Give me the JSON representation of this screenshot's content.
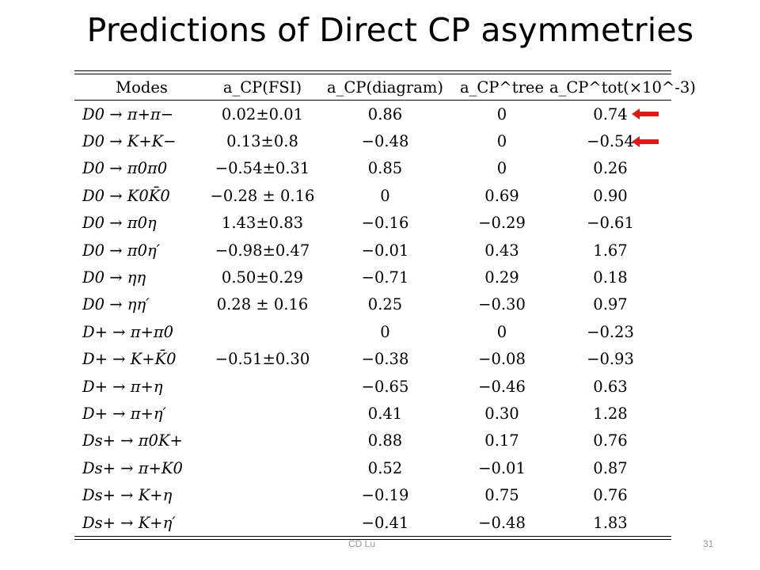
{
  "slide": {
    "title": "Predictions of Direct CP asymmetries",
    "footer_author": "CD Lu",
    "page_number": "31"
  },
  "table": {
    "headers": [
      "Modes",
      "a_CP(FSI)",
      "a_CP(diagram)",
      "a_CP^tree",
      "a_CP^tot(×10^-3)"
    ],
    "rows": [
      {
        "mode": "D0 → π+π−",
        "fsi": "0.02±0.01",
        "diagram": "0.86",
        "tree": "0",
        "tot": "0.74",
        "highlight": true
      },
      {
        "mode": "D0 → K+K−",
        "fsi": "0.13±0.8",
        "diagram": "−0.48",
        "tree": "0",
        "tot": "−0.54",
        "highlight": true
      },
      {
        "mode": "D0 → π0π0",
        "fsi": "−0.54±0.31",
        "diagram": "0.85",
        "tree": "0",
        "tot": "0.26"
      },
      {
        "mode": "D0 → K0K̄0",
        "fsi": "−0.28 ± 0.16",
        "diagram": "0",
        "tree": "0.69",
        "tot": "0.90"
      },
      {
        "mode": "D0 → π0η",
        "fsi": "1.43±0.83",
        "diagram": "−0.16",
        "tree": "−0.29",
        "tot": "−0.61"
      },
      {
        "mode": "D0 → π0η′",
        "fsi": "−0.98±0.47",
        "diagram": "−0.01",
        "tree": "0.43",
        "tot": "1.67"
      },
      {
        "mode": "D0 → ηη",
        "fsi": "0.50±0.29",
        "diagram": "−0.71",
        "tree": "0.29",
        "tot": "0.18"
      },
      {
        "mode": "D0 → ηη′",
        "fsi": "0.28 ± 0.16",
        "diagram": "0.25",
        "tree": "−0.30",
        "tot": "0.97"
      },
      {
        "mode": "D+ → π+π0",
        "fsi": "",
        "diagram": "0",
        "tree": "0",
        "tot": "−0.23"
      },
      {
        "mode": "D+ → K+K̄0",
        "fsi": "−0.51±0.30",
        "diagram": "−0.38",
        "tree": "−0.08",
        "tot": "−0.93"
      },
      {
        "mode": "D+ → π+η",
        "fsi": "",
        "diagram": "−0.65",
        "tree": "−0.46",
        "tot": "0.63"
      },
      {
        "mode": "D+ → π+η′",
        "fsi": "",
        "diagram": "0.41",
        "tree": "0.30",
        "tot": "1.28"
      },
      {
        "mode": "Ds+ → π0K+",
        "fsi": "",
        "diagram": "0.88",
        "tree": "0.17",
        "tot": "0.76"
      },
      {
        "mode": "Ds+ → π+K0",
        "fsi": "",
        "diagram": "0.52",
        "tree": "−0.01",
        "tot": "0.87"
      },
      {
        "mode": "Ds+ → K+η",
        "fsi": "",
        "diagram": "−0.19",
        "tree": "0.75",
        "tot": "0.76"
      },
      {
        "mode": "Ds+ → K+η′",
        "fsi": "",
        "diagram": "−0.41",
        "tree": "−0.48",
        "tot": "1.83"
      }
    ]
  },
  "colors": {
    "arrow": "#e01818"
  }
}
